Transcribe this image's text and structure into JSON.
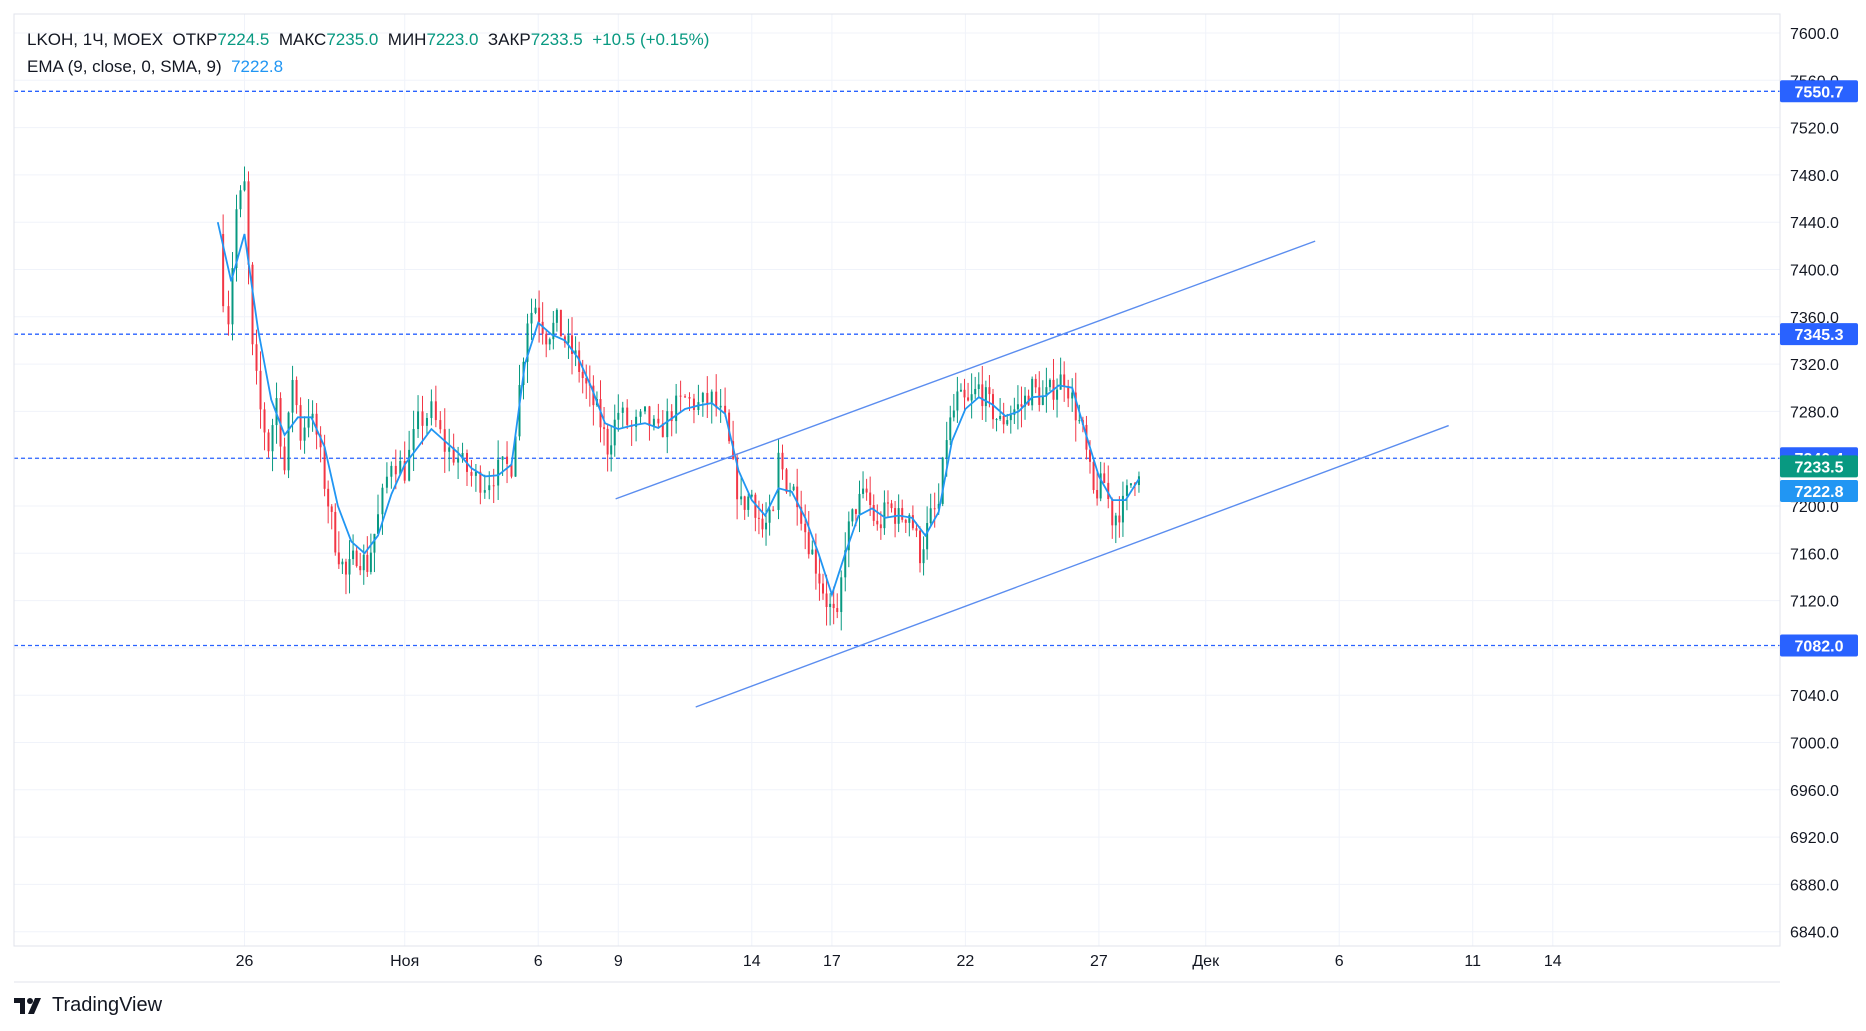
{
  "legend": {
    "symbol": "LKOH",
    "interval": "1Ч",
    "exchange": "MOEX",
    "open_label": "ОТКР",
    "open": "7224.5",
    "high_label": "МАКС",
    "high": "7235.0",
    "low_label": "МИН",
    "low": "7223.0",
    "close_label": "ЗАКР",
    "close": "7233.5",
    "change": "+10.5 (+0.15%)",
    "ema_label": "EMA (9, close, 0, SMA, 9)",
    "ema_value": "7222.8"
  },
  "branding": {
    "logo_text": "TradingView"
  },
  "colors": {
    "up": "#089981",
    "down": "#f23645",
    "ema": "#2196f3",
    "trendline": "#5b8def",
    "hline": "#2962ff",
    "grid": "#f0f3fa",
    "tag_blue": "#2962ff",
    "tag_ema": "#2196f3",
    "tag_close": "#089981"
  },
  "chart_data": {
    "type": "candlestick",
    "symbol": "LKOH",
    "interval": "1Ч",
    "y_axis": {
      "min": 6820,
      "max": 7620,
      "ticks": [
        6840,
        6880,
        6920,
        6960,
        7000,
        7040,
        7080,
        7120,
        7160,
        7200,
        7240,
        7280,
        7320,
        7360,
        7400,
        7440,
        7480,
        7520,
        7560,
        7600
      ],
      "tick_labels": [
        "6840.0",
        "6880.0",
        "6920.0",
        "6960.0",
        "7000.0",
        "7040.0",
        "7080.0",
        "7120.0",
        "7160.0",
        "7200.0",
        "7240.0",
        "7280.0",
        "7320.0",
        "7360.0",
        "7400.0",
        "7440.0",
        "7480.0",
        "7520.0",
        "7560.0",
        "7600.0"
      ]
    },
    "x_axis": {
      "ticks": [
        {
          "label": "26",
          "day": -5
        },
        {
          "label": "Ноя",
          "day": 1
        },
        {
          "label": "6",
          "day": 6
        },
        {
          "label": "9",
          "day": 9
        },
        {
          "label": "14",
          "day": 14
        },
        {
          "label": "17",
          "day": 17
        },
        {
          "label": "22",
          "day": 22
        },
        {
          "label": "27",
          "day": 27
        },
        {
          "label": "Дек",
          "day": 31
        },
        {
          "label": "6",
          "day": 36
        },
        {
          "label": "11",
          "day": 41
        },
        {
          "label": "14",
          "day": 44
        }
      ]
    },
    "horizontal_levels": [
      {
        "value": 7550.7,
        "label": "7550.7"
      },
      {
        "value": 7345.3,
        "label": "7345.3"
      },
      {
        "value": 7082.0,
        "label": "7082.0"
      },
      {
        "value": 7240.4,
        "label": "7240.4"
      }
    ],
    "price_tags": [
      {
        "value": 7233.5,
        "label": "7233.5",
        "kind": "close"
      },
      {
        "value": 7222.8,
        "label": "7222.8",
        "kind": "ema"
      }
    ],
    "trendlines": [
      {
        "from": {
          "day": 8.9,
          "price": 7206
        },
        "to": {
          "day": 35.1,
          "price": 7424
        }
      },
      {
        "from": {
          "day": 11.9,
          "price": 7030
        },
        "to": {
          "day": 40.1,
          "price": 7268
        }
      }
    ],
    "candles_close_path": [
      {
        "day": -6.0,
        "price": 7430
      },
      {
        "day": -5.8,
        "price": 7380
      },
      {
        "day": -5.6,
        "price": 7360
      },
      {
        "day": -5.3,
        "price": 7450
      },
      {
        "day": -5.0,
        "price": 7470
      },
      {
        "day": -4.7,
        "price": 7330
      },
      {
        "day": -4.4,
        "price": 7280
      },
      {
        "day": -4.1,
        "price": 7250
      },
      {
        "day": -3.8,
        "price": 7290
      },
      {
        "day": -3.5,
        "price": 7230
      },
      {
        "day": -3.2,
        "price": 7310
      },
      {
        "day": -2.9,
        "price": 7260
      },
      {
        "day": -2.6,
        "price": 7280
      },
      {
        "day": -2.3,
        "price": 7260
      },
      {
        "day": -2.0,
        "price": 7220
      },
      {
        "day": -1.6,
        "price": 7170
      },
      {
        "day": -1.2,
        "price": 7140
      },
      {
        "day": -0.8,
        "price": 7160
      },
      {
        "day": -0.4,
        "price": 7150
      },
      {
        "day": 0.0,
        "price": 7190
      },
      {
        "day": 0.5,
        "price": 7240
      },
      {
        "day": 1.0,
        "price": 7230
      },
      {
        "day": 1.5,
        "price": 7270
      },
      {
        "day": 2.0,
        "price": 7280
      },
      {
        "day": 2.5,
        "price": 7250
      },
      {
        "day": 3.0,
        "price": 7240
      },
      {
        "day": 3.5,
        "price": 7225
      },
      {
        "day": 4.0,
        "price": 7220
      },
      {
        "day": 4.5,
        "price": 7230
      },
      {
        "day": 5.0,
        "price": 7235
      },
      {
        "day": 5.3,
        "price": 7300
      },
      {
        "day": 5.6,
        "price": 7360
      },
      {
        "day": 5.9,
        "price": 7370
      },
      {
        "day": 6.3,
        "price": 7345
      },
      {
        "day": 6.7,
        "price": 7355
      },
      {
        "day": 7.0,
        "price": 7340
      },
      {
        "day": 7.4,
        "price": 7325
      },
      {
        "day": 7.8,
        "price": 7300
      },
      {
        "day": 8.2,
        "price": 7280
      },
      {
        "day": 8.6,
        "price": 7250
      },
      {
        "day": 9.0,
        "price": 7280
      },
      {
        "day": 9.5,
        "price": 7265
      },
      {
        "day": 10.0,
        "price": 7275
      },
      {
        "day": 10.5,
        "price": 7260
      },
      {
        "day": 11.0,
        "price": 7280
      },
      {
        "day": 11.5,
        "price": 7290
      },
      {
        "day": 12.0,
        "price": 7285
      },
      {
        "day": 12.5,
        "price": 7290
      },
      {
        "day": 13.0,
        "price": 7270
      },
      {
        "day": 13.3,
        "price": 7230
      },
      {
        "day": 13.6,
        "price": 7200
      },
      {
        "day": 14.0,
        "price": 7210
      },
      {
        "day": 14.4,
        "price": 7180
      },
      {
        "day": 14.8,
        "price": 7190
      },
      {
        "day": 15.0,
        "price": 7240
      },
      {
        "day": 15.3,
        "price": 7220
      },
      {
        "day": 15.7,
        "price": 7210
      },
      {
        "day": 16.0,
        "price": 7180
      },
      {
        "day": 16.4,
        "price": 7150
      },
      {
        "day": 16.8,
        "price": 7120
      },
      {
        "day": 17.2,
        "price": 7100
      },
      {
        "day": 17.5,
        "price": 7170
      },
      {
        "day": 17.9,
        "price": 7200
      },
      {
        "day": 18.3,
        "price": 7210
      },
      {
        "day": 18.7,
        "price": 7180
      },
      {
        "day": 19.1,
        "price": 7200
      },
      {
        "day": 19.5,
        "price": 7190
      },
      {
        "day": 19.9,
        "price": 7195
      },
      {
        "day": 20.3,
        "price": 7160
      },
      {
        "day": 20.7,
        "price": 7190
      },
      {
        "day": 21.0,
        "price": 7200
      },
      {
        "day": 21.3,
        "price": 7260
      },
      {
        "day": 21.7,
        "price": 7290
      },
      {
        "day": 22.1,
        "price": 7285
      },
      {
        "day": 22.5,
        "price": 7300
      },
      {
        "day": 22.9,
        "price": 7285
      },
      {
        "day": 23.3,
        "price": 7270
      },
      {
        "day": 23.7,
        "price": 7280
      },
      {
        "day": 24.1,
        "price": 7285
      },
      {
        "day": 24.5,
        "price": 7300
      },
      {
        "day": 24.9,
        "price": 7290
      },
      {
        "day": 25.3,
        "price": 7300
      },
      {
        "day": 25.7,
        "price": 7310
      },
      {
        "day": 26.0,
        "price": 7290
      },
      {
        "day": 26.4,
        "price": 7260
      },
      {
        "day": 26.8,
        "price": 7210
      },
      {
        "day": 27.2,
        "price": 7220
      },
      {
        "day": 27.5,
        "price": 7190
      },
      {
        "day": 27.9,
        "price": 7200
      },
      {
        "day": 28.2,
        "price": 7220
      },
      {
        "day": 28.5,
        "price": 7233.5
      }
    ],
    "ema_path": [
      {
        "day": -6.0,
        "price": 7440
      },
      {
        "day": -5.5,
        "price": 7390
      },
      {
        "day": -5.0,
        "price": 7430
      },
      {
        "day": -4.5,
        "price": 7350
      },
      {
        "day": -4.0,
        "price": 7290
      },
      {
        "day": -3.5,
        "price": 7260
      },
      {
        "day": -3.0,
        "price": 7275
      },
      {
        "day": -2.5,
        "price": 7275
      },
      {
        "day": -2.0,
        "price": 7250
      },
      {
        "day": -1.5,
        "price": 7200
      },
      {
        "day": -1.0,
        "price": 7170
      },
      {
        "day": -0.5,
        "price": 7160
      },
      {
        "day": 0.0,
        "price": 7175
      },
      {
        "day": 0.5,
        "price": 7210
      },
      {
        "day": 1.0,
        "price": 7235
      },
      {
        "day": 1.5,
        "price": 7250
      },
      {
        "day": 2.0,
        "price": 7265
      },
      {
        "day": 2.5,
        "price": 7255
      },
      {
        "day": 3.0,
        "price": 7245
      },
      {
        "day": 3.5,
        "price": 7232
      },
      {
        "day": 4.0,
        "price": 7225
      },
      {
        "day": 4.5,
        "price": 7226
      },
      {
        "day": 5.0,
        "price": 7235
      },
      {
        "day": 5.5,
        "price": 7320
      },
      {
        "day": 6.0,
        "price": 7355
      },
      {
        "day": 6.5,
        "price": 7345
      },
      {
        "day": 7.0,
        "price": 7340
      },
      {
        "day": 7.5,
        "price": 7325
      },
      {
        "day": 8.0,
        "price": 7300
      },
      {
        "day": 8.5,
        "price": 7270
      },
      {
        "day": 9.0,
        "price": 7265
      },
      {
        "day": 9.5,
        "price": 7268
      },
      {
        "day": 10.0,
        "price": 7270
      },
      {
        "day": 10.5,
        "price": 7266
      },
      {
        "day": 11.0,
        "price": 7274
      },
      {
        "day": 11.5,
        "price": 7282
      },
      {
        "day": 12.0,
        "price": 7285
      },
      {
        "day": 12.5,
        "price": 7287
      },
      {
        "day": 13.0,
        "price": 7278
      },
      {
        "day": 13.5,
        "price": 7230
      },
      {
        "day": 14.0,
        "price": 7205
      },
      {
        "day": 14.5,
        "price": 7192
      },
      {
        "day": 15.0,
        "price": 7215
      },
      {
        "day": 15.5,
        "price": 7212
      },
      {
        "day": 16.0,
        "price": 7190
      },
      {
        "day": 16.5,
        "price": 7160
      },
      {
        "day": 17.0,
        "price": 7125
      },
      {
        "day": 17.5,
        "price": 7160
      },
      {
        "day": 18.0,
        "price": 7192
      },
      {
        "day": 18.5,
        "price": 7198
      },
      {
        "day": 19.0,
        "price": 7190
      },
      {
        "day": 19.5,
        "price": 7192
      },
      {
        "day": 20.0,
        "price": 7190
      },
      {
        "day": 20.5,
        "price": 7175
      },
      {
        "day": 21.0,
        "price": 7195
      },
      {
        "day": 21.5,
        "price": 7255
      },
      {
        "day": 22.0,
        "price": 7282
      },
      {
        "day": 22.5,
        "price": 7292
      },
      {
        "day": 23.0,
        "price": 7286
      },
      {
        "day": 23.5,
        "price": 7276
      },
      {
        "day": 24.0,
        "price": 7280
      },
      {
        "day": 24.5,
        "price": 7292
      },
      {
        "day": 25.0,
        "price": 7293
      },
      {
        "day": 25.5,
        "price": 7302
      },
      {
        "day": 26.0,
        "price": 7300
      },
      {
        "day": 26.5,
        "price": 7262
      },
      {
        "day": 27.0,
        "price": 7225
      },
      {
        "day": 27.5,
        "price": 7205
      },
      {
        "day": 28.0,
        "price": 7205
      },
      {
        "day": 28.5,
        "price": 7222.8
      }
    ]
  }
}
